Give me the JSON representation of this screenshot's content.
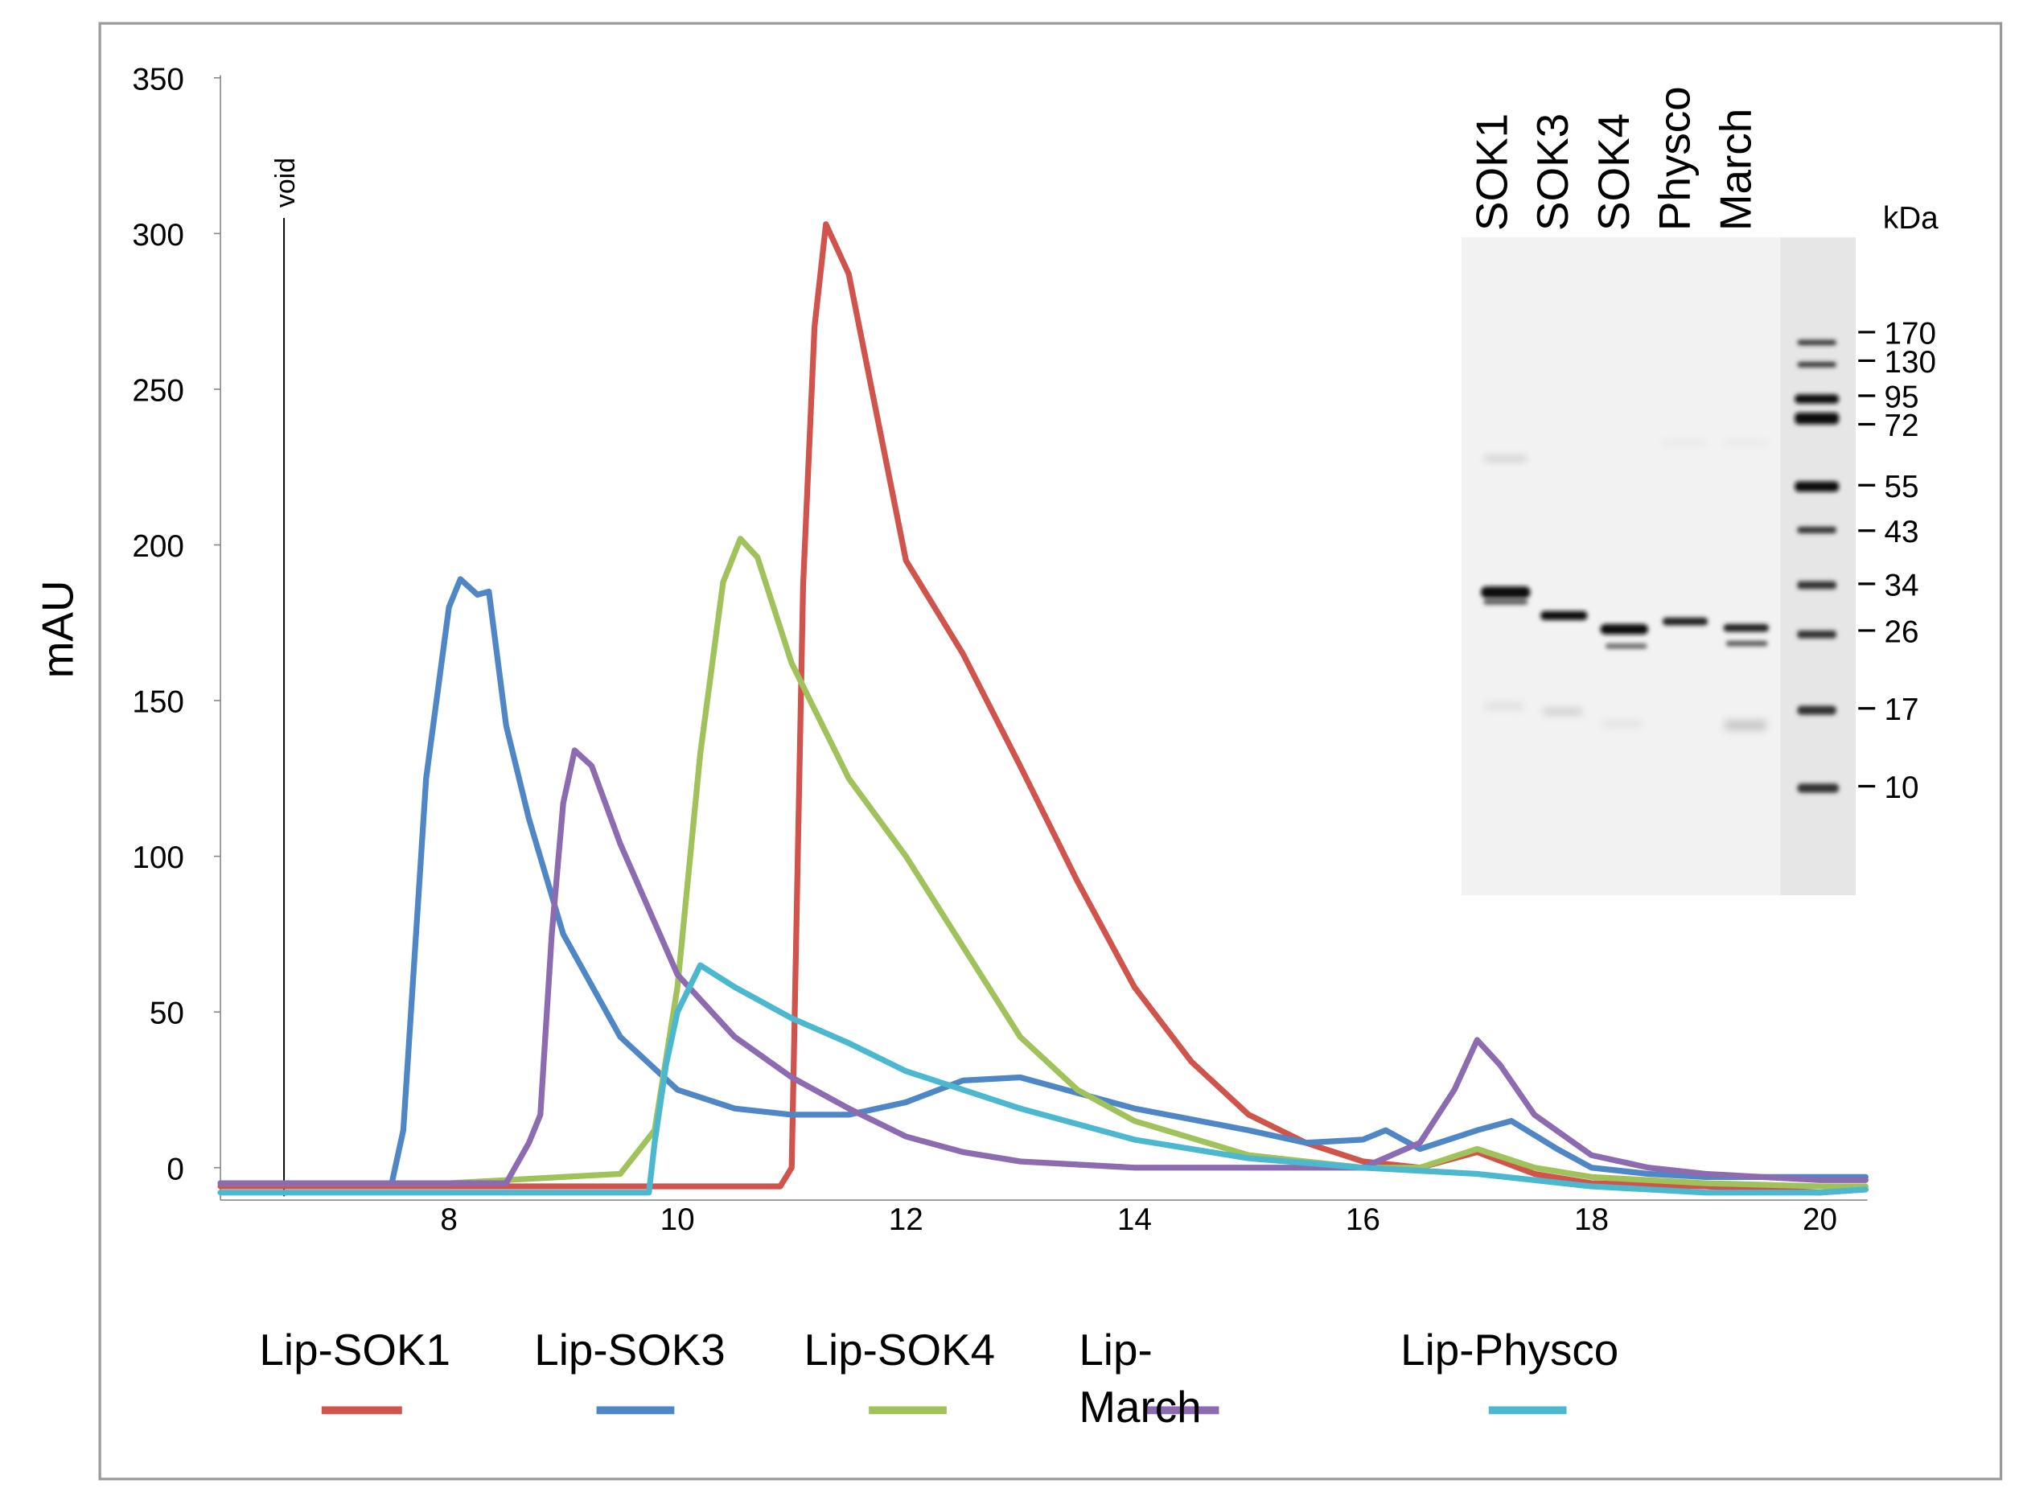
{
  "chart_data": {
    "type": "line",
    "title": "",
    "xlabel": "",
    "ylabel": "mAU",
    "xlim": [
      6.0,
      20.4
    ],
    "ylim": [
      -10,
      350
    ],
    "xticks": [
      8,
      10,
      12,
      14,
      16,
      18,
      20
    ],
    "yticks": [
      0,
      50,
      100,
      150,
      200,
      250,
      300,
      350
    ],
    "grid": false,
    "legend_placement": "bottom",
    "annotations": [
      {
        "text": "void",
        "x": 6.55
      }
    ],
    "series": [
      {
        "name": "Lip-SOK1",
        "color": "#d0534c",
        "x": [
          6.0,
          8,
          10,
          10.9,
          11.0,
          11.1,
          11.2,
          11.3,
          11.5,
          11.7,
          12,
          12.5,
          13,
          13.5,
          14,
          14.5,
          15,
          15.5,
          16,
          16.5,
          17,
          17.5,
          18,
          19,
          20,
          20.4
        ],
        "y": [
          -6,
          -6,
          -6,
          -6,
          0,
          187,
          270,
          303,
          287,
          250,
          195,
          165,
          129,
          92,
          58,
          34,
          17,
          8,
          2,
          0,
          5,
          -2,
          -5,
          -6,
          -8,
          -7
        ]
      },
      {
        "name": "Lip-SOK3",
        "color": "#4f86c6",
        "x": [
          6.0,
          7.0,
          7.5,
          7.6,
          7.8,
          8.0,
          8.1,
          8.25,
          8.35,
          8.5,
          8.7,
          9.0,
          9.5,
          10,
          10.5,
          11,
          11.5,
          12,
          12.5,
          13,
          13.5,
          14,
          15,
          15.5,
          16,
          16.2,
          16.5,
          17,
          17.3,
          17.7,
          18,
          18.5,
          19,
          20,
          20.4
        ],
        "y": [
          -5,
          -5,
          -5,
          12,
          125,
          180,
          189,
          184,
          185,
          142,
          112,
          75,
          42,
          25,
          19,
          17,
          17,
          21,
          28,
          29,
          24,
          19,
          12,
          8,
          9,
          12,
          6,
          12,
          15,
          6,
          0,
          -2,
          -3,
          -3,
          -3
        ]
      },
      {
        "name": "Lip-SOK4",
        "color": "#9fc25a",
        "x": [
          6.0,
          8,
          9.5,
          9.8,
          10.0,
          10.2,
          10.4,
          10.55,
          10.7,
          11,
          11.5,
          12,
          12.5,
          13,
          13.5,
          14,
          15,
          16,
          16.5,
          17,
          17.5,
          18,
          19,
          20,
          20.4
        ],
        "y": [
          -5,
          -5,
          -2,
          12,
          58,
          133,
          188,
          202,
          196,
          162,
          125,
          100,
          71,
          42,
          25,
          15,
          4,
          0,
          0,
          6,
          0,
          -3,
          -5,
          -6,
          -6
        ]
      },
      {
        "name": "Lip-March",
        "color": "#8c6bb1",
        "x": [
          6.0,
          8,
          8.5,
          8.7,
          8.8,
          8.9,
          9.0,
          9.1,
          9.25,
          9.5,
          10,
          10.5,
          11,
          11.5,
          12,
          12.5,
          13,
          14,
          15,
          16,
          16.5,
          16.8,
          17.0,
          17.2,
          17.5,
          18,
          18.5,
          19,
          20,
          20.4
        ],
        "y": [
          -5,
          -5,
          -5,
          8,
          17,
          75,
          117,
          134,
          129,
          104,
          62,
          42,
          29,
          19,
          10,
          5,
          2,
          0,
          0,
          0,
          8,
          25,
          41,
          33,
          17,
          4,
          0,
          -2,
          -4,
          -4
        ]
      },
      {
        "name": "Lip-Physco",
        "color": "#4bb8d0",
        "x": [
          6.0,
          8,
          9.75,
          9.8,
          9.9,
          10.0,
          10.2,
          10.5,
          11,
          11.5,
          12,
          12.5,
          13,
          14,
          15,
          16,
          17,
          18,
          19,
          20,
          20.4
        ],
        "y": [
          -8,
          -8,
          -8,
          8,
          33,
          50,
          65,
          58,
          48,
          40,
          31,
          25,
          19,
          9,
          3,
          0,
          -2,
          -6,
          -8,
          -8,
          -7
        ]
      }
    ]
  },
  "gel": {
    "lanes": [
      "SOK1",
      "SOK3",
      "SOK4",
      "Physco",
      "March"
    ],
    "unit_label": "kDa",
    "markers": [
      "170",
      "130",
      "95",
      "72",
      "55",
      "43",
      "34",
      "26",
      "17",
      "10"
    ]
  },
  "legend": {
    "march_line1": "Lip-",
    "march_line2": "March"
  }
}
